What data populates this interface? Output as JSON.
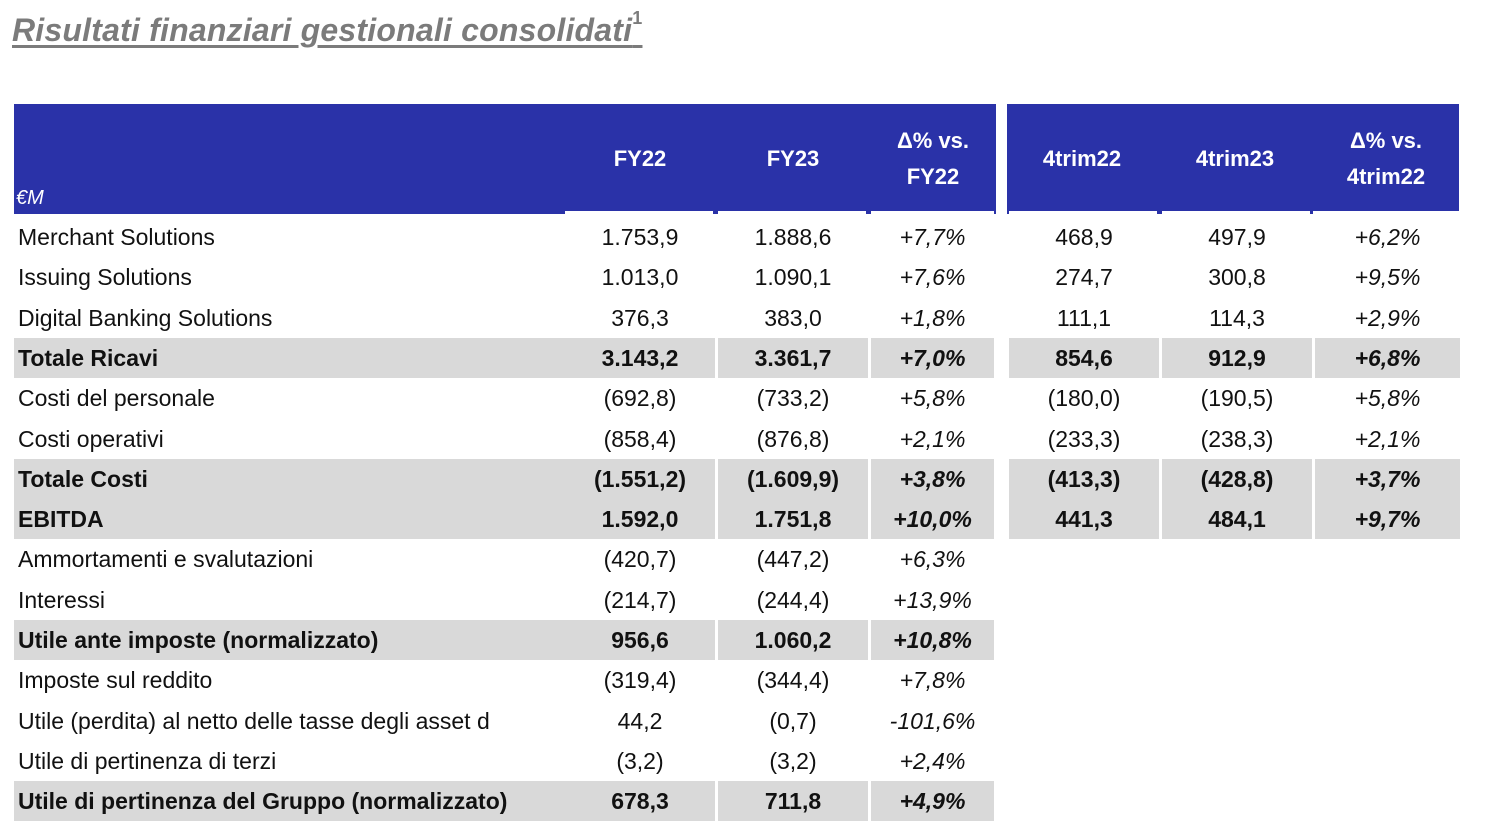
{
  "title": "Risultati finanziari gestionali consolidati",
  "title_sup": "1",
  "header": {
    "unit": "€M",
    "fy22": "FY22",
    "fy23": "FY23",
    "delta_fy_l1": "Δ% vs.",
    "delta_fy_l2": "FY22",
    "q22": "4trim22",
    "q23": "4trim23",
    "delta_q_l1": "Δ% vs.",
    "delta_q_l2": "4trim22"
  },
  "rows": [
    {
      "label": "Merchant Solutions",
      "fy22": "1.753,9",
      "fy23": "1.888,6",
      "dfy": "+7,7%",
      "q22": "468,9",
      "q23": "497,9",
      "dq": "+6,2%",
      "bold": false
    },
    {
      "label": "Issuing Solutions",
      "fy22": "1.013,0",
      "fy23": "1.090,1",
      "dfy": "+7,6%",
      "q22": "274,7",
      "q23": "300,8",
      "dq": "+9,5%",
      "bold": false
    },
    {
      "label": "Digital Banking Solutions",
      "fy22": "376,3",
      "fy23": "383,0",
      "dfy": "+1,8%",
      "q22": "111,1",
      "q23": "114,3",
      "dq": "+2,9%",
      "bold": false
    },
    {
      "label": "Totale Ricavi",
      "fy22": "3.143,2",
      "fy23": "3.361,7",
      "dfy": "+7,0%",
      "q22": "854,6",
      "q23": "912,9",
      "dq": "+6,8%",
      "bold": true
    },
    {
      "label": "Costi del personale",
      "fy22": "(692,8)",
      "fy23": "(733,2)",
      "dfy": "+5,8%",
      "q22": "(180,0)",
      "q23": "(190,5)",
      "dq": "+5,8%",
      "bold": false
    },
    {
      "label": "Costi operativi",
      "fy22": "(858,4)",
      "fy23": "(876,8)",
      "dfy": "+2,1%",
      "q22": "(233,3)",
      "q23": "(238,3)",
      "dq": "+2,1%",
      "bold": false
    },
    {
      "label": "Totale Costi",
      "fy22": "(1.551,2)",
      "fy23": "(1.609,9)",
      "dfy": "+3,8%",
      "q22": "(413,3)",
      "q23": "(428,8)",
      "dq": "+3,7%",
      "bold": true
    },
    {
      "label": "EBITDA",
      "fy22": "1.592,0",
      "fy23": "1.751,8",
      "dfy": "+10,0%",
      "q22": "441,3",
      "q23": "484,1",
      "dq": "+9,7%",
      "bold": true
    },
    {
      "label": "Ammortamenti e svalutazioni",
      "fy22": "(420,7)",
      "fy23": "(447,2)",
      "dfy": "+6,3%",
      "q22": "",
      "q23": "",
      "dq": "",
      "bold": false
    },
    {
      "label": "Interessi",
      "fy22": "(214,7)",
      "fy23": "(244,4)",
      "dfy": "+13,9%",
      "q22": "",
      "q23": "",
      "dq": "",
      "bold": false
    },
    {
      "label": "Utile ante imposte (normalizzato)",
      "fy22": "956,6",
      "fy23": "1.060,2",
      "dfy": "+10,8%",
      "q22": "",
      "q23": "",
      "dq": "",
      "bold": true
    },
    {
      "label": "Imposte sul reddito",
      "fy22": "(319,4)",
      "fy23": "(344,4)",
      "dfy": "+7,8%",
      "q22": "",
      "q23": "",
      "dq": "",
      "bold": false
    },
    {
      "label": "Utile (perdita) al netto delle tasse degli asset d",
      "fy22": "44,2",
      "fy23": "(0,7)",
      "dfy": "-101,6%",
      "q22": "",
      "q23": "",
      "dq": "",
      "bold": false
    },
    {
      "label": "Utile di pertinenza di terzi",
      "fy22": "(3,2)",
      "fy23": "(3,2)",
      "dfy": "+2,4%",
      "q22": "",
      "q23": "",
      "dq": "",
      "bold": false
    },
    {
      "label": "Utile di pertinenza del Gruppo (normalizzato)",
      "fy22": "678,3",
      "fy23": "711,8",
      "dfy": "+4,9%",
      "q22": "",
      "q23": "",
      "dq": "",
      "bold": true
    }
  ]
}
